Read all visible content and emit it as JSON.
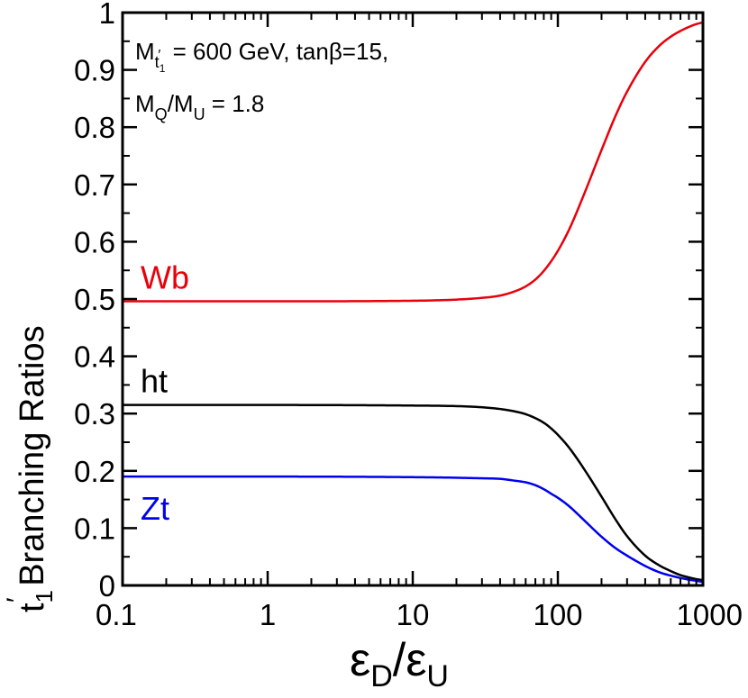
{
  "chart_data": {
    "type": "line",
    "title": "",
    "xlabel": {
      "main1": "ε",
      "sub1": "D",
      "slash": "/",
      "main2": "ε",
      "sub2": "U"
    },
    "ylabel": {
      "pre": "t",
      "sub": "1",
      "prime": "′",
      "post": " Branching Ratios"
    },
    "xscale": "log",
    "xlim": [
      0.1,
      1000
    ],
    "ylim": [
      0,
      1
    ],
    "x_ticks": [
      0.1,
      1,
      10,
      100,
      1000
    ],
    "x_tick_labels": [
      "0.1",
      "1",
      "10",
      "100",
      "1000"
    ],
    "y_ticks": [
      0,
      0.1,
      0.2,
      0.3,
      0.4,
      0.5,
      0.6,
      0.7,
      0.8,
      0.9,
      1
    ],
    "y_tick_labels": [
      "0",
      "0.1",
      "0.2",
      "0.3",
      "0.4",
      "0.5",
      "0.6",
      "0.7",
      "0.8",
      "0.9",
      "1"
    ],
    "annotations": {
      "line1": {
        "m": "M",
        "sub": "t",
        "subsub": "1",
        "subprime": "′",
        "rest": " = 600 GeV,   tanβ=15,"
      },
      "line2": {
        "m1": "M",
        "sub1": "Q",
        "slash": "/M",
        "sub2": "U",
        "rest": " = 1.8"
      }
    },
    "series": [
      {
        "name": "Wb",
        "color": "#e8000b",
        "x": [
          0.1,
          1,
          10,
          20,
          30,
          40,
          50,
          60,
          70,
          80,
          90,
          100,
          120,
          150,
          200,
          250,
          300,
          400,
          500,
          600,
          700,
          800,
          900,
          1000
        ],
        "y": [
          0.496,
          0.496,
          0.497,
          0.499,
          0.502,
          0.506,
          0.513,
          0.522,
          0.534,
          0.549,
          0.566,
          0.584,
          0.622,
          0.68,
          0.76,
          0.82,
          0.862,
          0.914,
          0.942,
          0.958,
          0.968,
          0.975,
          0.98,
          0.983
        ]
      },
      {
        "name": "ht",
        "color": "#000000",
        "x": [
          0.1,
          1,
          10,
          20,
          30,
          40,
          50,
          60,
          70,
          80,
          90,
          100,
          120,
          150,
          200,
          250,
          300,
          400,
          500,
          600,
          700,
          800,
          900,
          1000
        ],
        "y": [
          0.315,
          0.315,
          0.314,
          0.313,
          0.311,
          0.308,
          0.304,
          0.299,
          0.292,
          0.284,
          0.274,
          0.263,
          0.24,
          0.205,
          0.155,
          0.115,
          0.086,
          0.052,
          0.035,
          0.025,
          0.018,
          0.014,
          0.011,
          0.009
        ]
      },
      {
        "name": "Zt",
        "color": "#0000ee",
        "x": [
          0.1,
          1,
          10,
          20,
          30,
          40,
          50,
          60,
          70,
          80,
          90,
          100,
          120,
          150,
          200,
          250,
          300,
          400,
          500,
          600,
          700,
          800,
          900,
          1000
        ],
        "y": [
          0.19,
          0.19,
          0.189,
          0.188,
          0.187,
          0.186,
          0.183,
          0.18,
          0.175,
          0.168,
          0.16,
          0.153,
          0.138,
          0.115,
          0.085,
          0.065,
          0.052,
          0.034,
          0.023,
          0.017,
          0.013,
          0.01,
          0.008,
          0.006
        ]
      }
    ]
  }
}
